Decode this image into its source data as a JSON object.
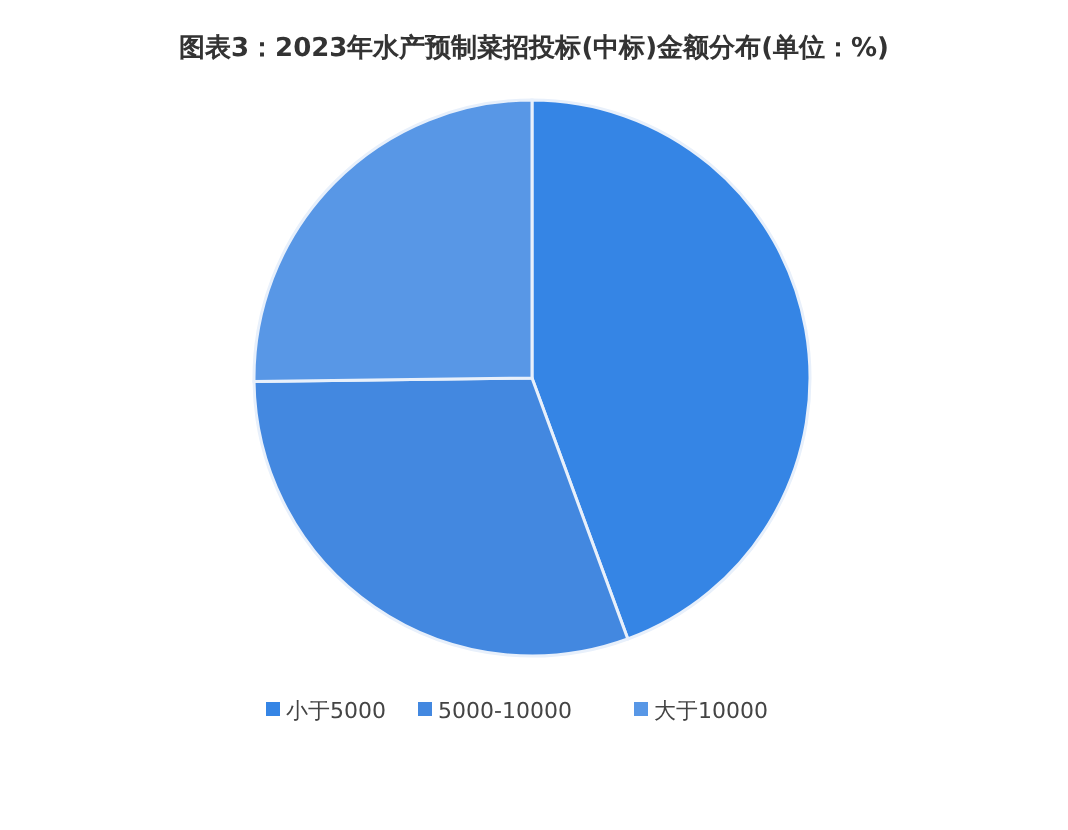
{
  "chart_data": {
    "type": "pie",
    "title": "图表3：2023年水产预制菜招投标(中标)金额分布(单位：%)",
    "categories": [
      "小于5000",
      "5000-10000",
      "大于10000"
    ],
    "values": [
      44.4,
      30.4,
      25.2
    ],
    "colors": [
      "#3585e5",
      "#4388e0",
      "#5897e6"
    ],
    "legend": "bottom"
  }
}
